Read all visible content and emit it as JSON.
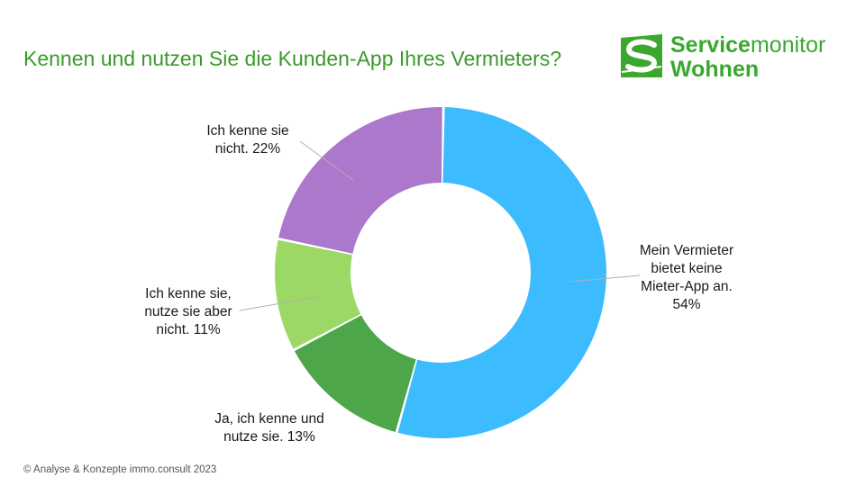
{
  "title": "Kennen und nutzen Sie die Kunden-App Ihres Vermieters?",
  "logo": {
    "line1_bold": "Service",
    "line1_light": "monitor",
    "line2": "Wohnen",
    "color": "#3aa82e"
  },
  "footer": "© Analyse & Konzepte immo.consult 2023",
  "chart_data": {
    "type": "pie",
    "donut": true,
    "title": "Kennen und nutzen Sie die Kunden-App Ihres Vermieters?",
    "slices": [
      {
        "name": "Mein Vermieter bietet keine Mieter-App an.",
        "value": 54,
        "label_lines": [
          "Mein Vermieter",
          "bietet keine",
          "Mieter-App an.",
          "54%"
        ],
        "color": "#3dbbff"
      },
      {
        "name": "Ja, ich kenne und nutze sie.",
        "value": 13,
        "label_lines": [
          "Ja, ich kenne und",
          "nutze sie. 13%"
        ],
        "color": "#4ea64a"
      },
      {
        "name": "Ich kenne sie, nutze sie aber nicht.",
        "value": 11,
        "label_lines": [
          "Ich kenne sie,",
          "nutze sie aber",
          "nicht. 11%"
        ],
        "color": "#9bd866"
      },
      {
        "name": "Ich kenne sie nicht.",
        "value": 22,
        "label_lines": [
          "Ich kenne sie",
          "nicht. 22%"
        ],
        "color": "#ab78cc"
      }
    ]
  }
}
